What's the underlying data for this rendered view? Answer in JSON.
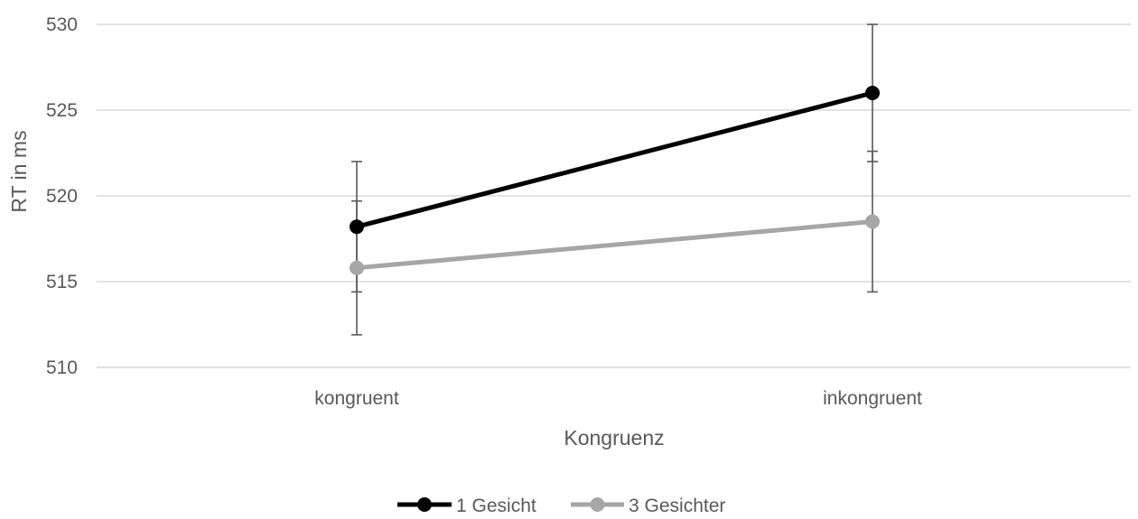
{
  "chart_data": {
    "type": "line",
    "title": "",
    "xlabel": "Kongruenz",
    "ylabel": "RT in ms",
    "categories": [
      "kongruent",
      "inkongruent"
    ],
    "ylim": [
      510,
      530
    ],
    "yticks": [
      510,
      515,
      520,
      525,
      530
    ],
    "grid": true,
    "legend_position": "bottom",
    "series": [
      {
        "name": "1 Gesicht",
        "color": "#000000",
        "values": [
          518.2,
          526.0
        ],
        "error_low": [
          514.4,
          522.0
        ],
        "error_high": [
          522.0,
          530.0
        ]
      },
      {
        "name": "3 Gesichter",
        "color": "#a6a6a6",
        "values": [
          515.8,
          518.5
        ],
        "error_low": [
          511.9,
          514.4
        ],
        "error_high": [
          519.7,
          522.6
        ]
      }
    ]
  }
}
